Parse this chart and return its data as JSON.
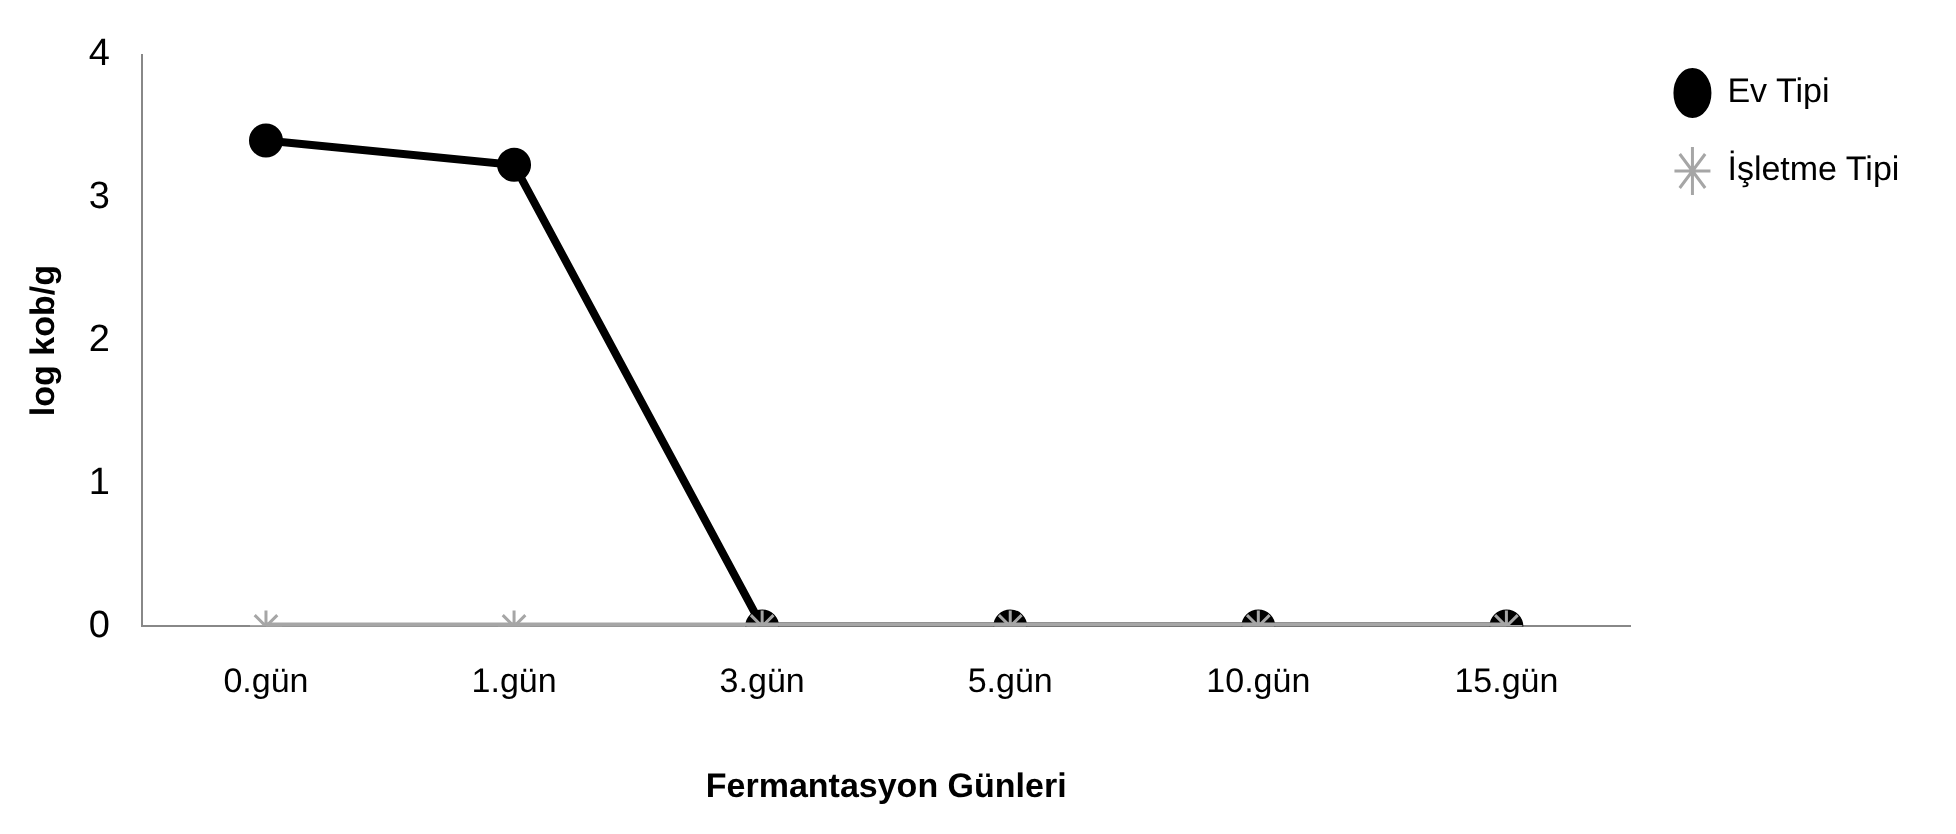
{
  "chart_data": {
    "type": "line",
    "xlabel": "Fermantasyon Günleri",
    "ylabel": "log kob/g",
    "categories": [
      "0.gün",
      "1.gün",
      "3.gün",
      "5.gün",
      "10.gün",
      "15.gün"
    ],
    "series": [
      {
        "name": "Ev Tipi",
        "color": "#000000",
        "marker": "circle",
        "values": [
          3.4,
          3.23,
          0,
          0,
          0,
          0
        ]
      },
      {
        "name": "İşletme Tipi",
        "color": "#a6a6a6",
        "marker": "cross",
        "values": [
          0,
          0,
          0,
          0,
          0,
          0
        ]
      }
    ],
    "ylim": [
      0,
      4
    ],
    "yticks": [
      0,
      1,
      2,
      3,
      4
    ],
    "grid": false,
    "legend": "top right",
    "line_style": "solid"
  }
}
